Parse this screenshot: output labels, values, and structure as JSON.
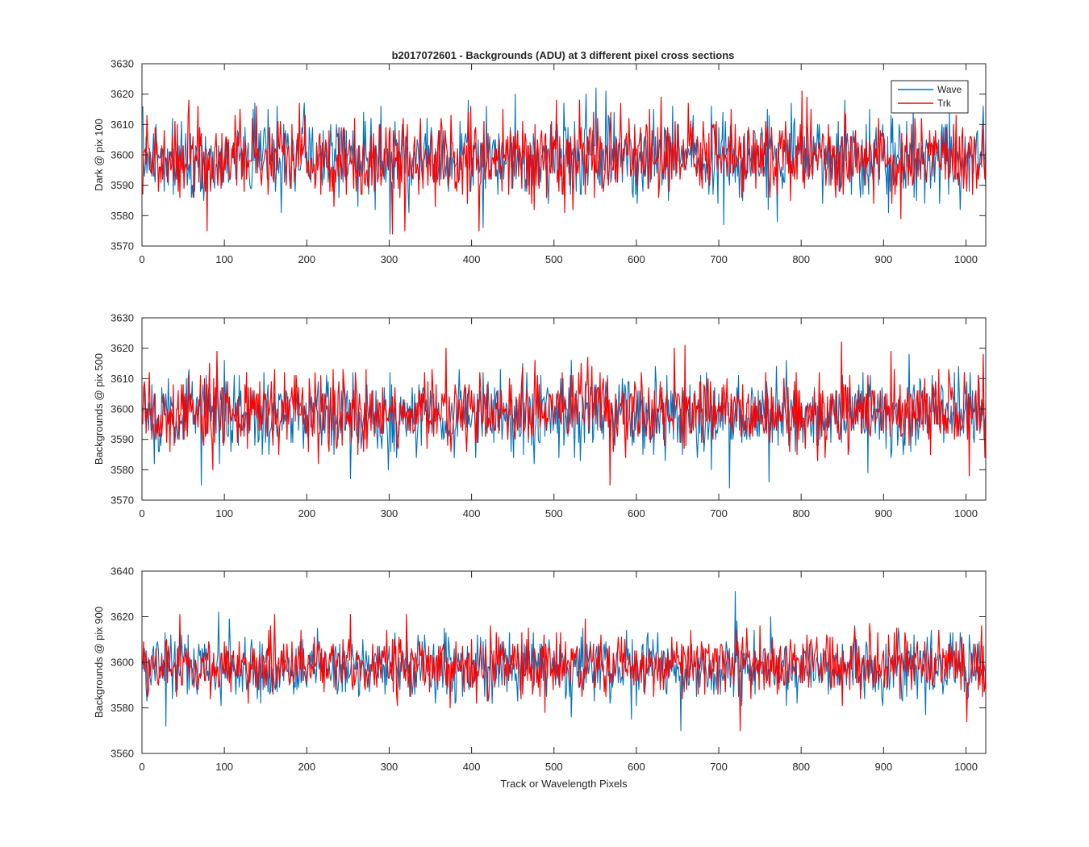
{
  "figure": {
    "title": "b2017072601 - Backgrounds (ADU) at 3 different pixel cross sections"
  },
  "chart_data": [
    {
      "type": "line",
      "title": "b2017072601 - Backgrounds (ADU) at 3 different pixel cross sections",
      "xlabel": "",
      "ylabel": "Dark @ pix 100",
      "xlim": [
        0,
        1024
      ],
      "ylim": [
        3570,
        3630
      ],
      "xticks": [
        0,
        100,
        200,
        300,
        400,
        500,
        600,
        700,
        800,
        900,
        1000
      ],
      "yticks": [
        3570,
        3580,
        3590,
        3600,
        3610,
        3620,
        3630
      ],
      "legend": {
        "position": "top-right",
        "entries": [
          "Wave",
          "Trk"
        ]
      },
      "series": [
        {
          "name": "Wave",
          "color": "#0072BD",
          "n_points": 1024,
          "mean": 3599,
          "std": 6.6,
          "seed": 11,
          "notable_points": [
            [
              0,
              3616
            ],
            [
              136,
              3617
            ],
            [
              196,
              3617
            ],
            [
              300,
              3574
            ],
            [
              413,
              3576
            ],
            [
              452,
              3620
            ],
            [
              538,
              3620
            ],
            [
              550,
              3622
            ],
            [
              562,
              3621
            ],
            [
              705,
              3577
            ],
            [
              770,
              3578
            ],
            [
              882,
              3615
            ],
            [
              905,
              3581
            ],
            [
              935,
              3616
            ],
            [
              1020,
              3616
            ]
          ]
        },
        {
          "name": "Trk",
          "color": "#FF0000",
          "n_points": 1024,
          "mean": 3599,
          "std": 6.4,
          "seed": 23,
          "notable_points": [
            [
              5,
              3613
            ],
            [
              56,
              3618
            ],
            [
              78,
              3575
            ],
            [
              190,
              3617
            ],
            [
              303,
              3574
            ],
            [
              318,
              3575
            ],
            [
              408,
              3575
            ],
            [
              530,
              3618
            ],
            [
              580,
              3617
            ],
            [
              800,
              3621
            ],
            [
              920,
              3579
            ]
          ]
        }
      ]
    },
    {
      "type": "line",
      "title": "",
      "xlabel": "",
      "ylabel": "Backgrounds @ pix 500",
      "xlim": [
        0,
        1024
      ],
      "ylim": [
        3570,
        3630
      ],
      "xticks": [
        0,
        100,
        200,
        300,
        400,
        500,
        600,
        700,
        800,
        900,
        1000
      ],
      "yticks": [
        3570,
        3580,
        3590,
        3600,
        3610,
        3620,
        3630
      ],
      "series": [
        {
          "name": "Wave",
          "color": "#0072BD",
          "n_points": 1024,
          "mean": 3598,
          "std": 6.6,
          "seed": 37,
          "notable_points": [
            [
              90,
              3616
            ],
            [
              252,
              3577
            ],
            [
              300,
              3612
            ],
            [
              520,
              3616
            ],
            [
              622,
              3614
            ],
            [
              712,
              3574
            ],
            [
              760,
              3576
            ],
            [
              880,
              3579
            ],
            [
              990,
              3614
            ]
          ]
        },
        {
          "name": "Trk",
          "color": "#FF0000",
          "n_points": 1024,
          "mean": 3599,
          "std": 6.2,
          "seed": 53,
          "notable_points": [
            [
              85,
              3580
            ],
            [
              90,
              3619
            ],
            [
              368,
              3620
            ],
            [
              567,
              3575
            ],
            [
              658,
              3621
            ],
            [
              848,
              3622
            ],
            [
              908,
              3619
            ],
            [
              1003,
              3578
            ],
            [
              1020,
              3618
            ],
            [
              1022,
              3584
            ]
          ]
        }
      ]
    },
    {
      "type": "line",
      "title": "",
      "xlabel": "Track or Wavelength Pixels",
      "ylabel": "Backgrounds @ pix 900",
      "xlim": [
        0,
        1024
      ],
      "ylim": [
        3560,
        3640
      ],
      "xticks": [
        0,
        100,
        200,
        300,
        400,
        500,
        600,
        700,
        800,
        900,
        1000
      ],
      "yticks": [
        3560,
        3580,
        3600,
        3620,
        3640
      ],
      "series": [
        {
          "name": "Wave",
          "color": "#0072BD",
          "n_points": 1024,
          "mean": 3598,
          "std": 7.0,
          "seed": 71,
          "notable_points": [
            [
              28,
              3572
            ],
            [
              92,
              3622
            ],
            [
              520,
              3576
            ],
            [
              653,
              3570
            ],
            [
              719,
              3631
            ],
            [
              762,
              3620
            ],
            [
              950,
              3577
            ]
          ]
        },
        {
          "name": "Trk",
          "color": "#FF0000",
          "n_points": 1024,
          "mean": 3599,
          "std": 6.6,
          "seed": 89,
          "notable_points": [
            [
              45,
              3621
            ],
            [
              160,
              3621
            ],
            [
              252,
              3621
            ],
            [
              320,
              3621
            ],
            [
              405,
              3582
            ],
            [
              725,
              3570
            ],
            [
              1000,
              3574
            ],
            [
              1018,
              3616
            ]
          ]
        }
      ]
    }
  ]
}
